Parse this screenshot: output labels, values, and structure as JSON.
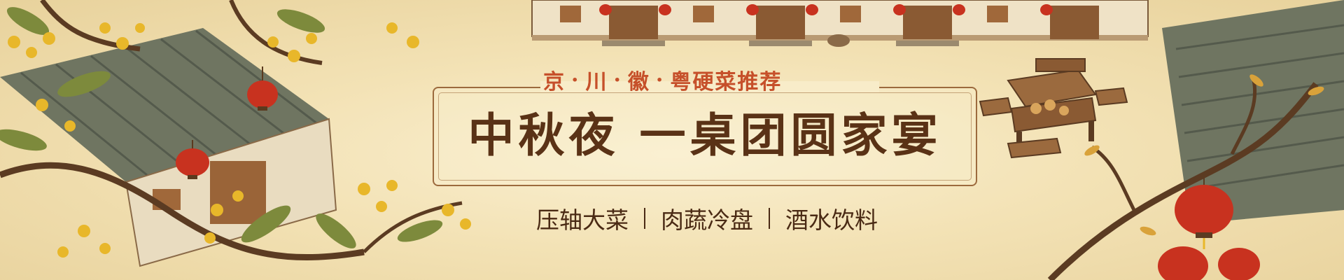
{
  "subtitle": {
    "cuisines": [
      "京",
      "川",
      "徽",
      "粤"
    ],
    "separator": "·",
    "label": "硬菜推荐"
  },
  "title": "中秋夜 一桌团圆家宴",
  "categories": [
    "压轴大菜",
    "肉蔬冷盘",
    "酒水饮料"
  ],
  "colors": {
    "background": "#f4e6bf",
    "subtitle": "#c6502a",
    "title": "#5a3216",
    "frame": "#9c6a3d",
    "lantern": "#c8321f",
    "osmanthus": "#e8b72a",
    "roof": "#6f7561",
    "wood": "#8a5a33"
  },
  "illustration": {
    "left": [
      "osmanthus-branch",
      "tiled-roof-house",
      "red-lanterns"
    ],
    "top_center": "row-of-houses-with-lanterns",
    "right": [
      "courtyard-table-with-mooncakes",
      "wooden-benches",
      "tiled-roof",
      "red-lanterns",
      "bare-branch"
    ]
  }
}
